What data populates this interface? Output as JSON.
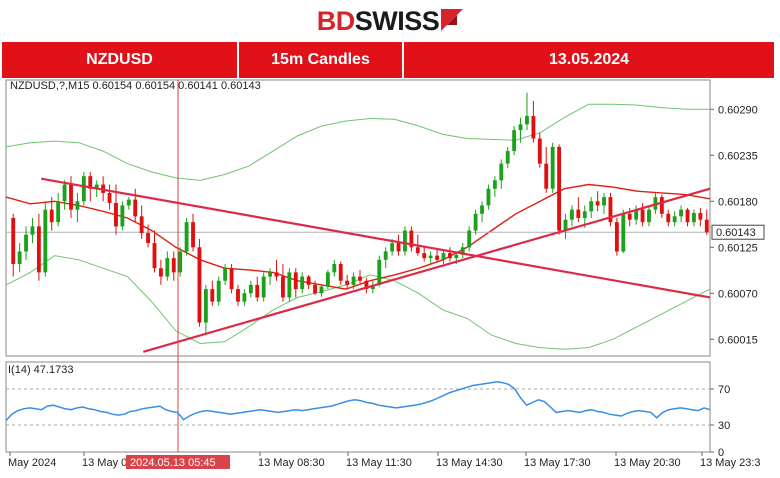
{
  "logo": {
    "brand_red_part": "BD",
    "brand_dark_part": "SWISS",
    "mark": "arrow-icon"
  },
  "banner": {
    "symbol": "NZDUSD",
    "timeframe": "15m Candles",
    "date": "13.05.2024"
  },
  "colors": {
    "brand_red": "#e1111a",
    "bull_candle": "#1ba11b",
    "bear_candle": "#e01010",
    "bollinger": "#6fc46f",
    "moving_average": "#e01f10",
    "trendline": "#dc2a46",
    "rsi": "#3a8ee6",
    "crosshair": "#d6403a"
  },
  "chart_data": [
    {
      "type": "candlestick",
      "info_label": "NZDUSD,?,M15  0.60154 0.60154 0.60141 0.60143",
      "current_price_label": "0.60143",
      "current_price": 0.60143,
      "ylim": [
        0.59995,
        0.60325
      ],
      "y_ticks": [
        "0.60290",
        "0.60235",
        "0.60180",
        "0.60125",
        "0.60070",
        "0.60015"
      ],
      "x_tick_labels": [
        "May 2024",
        "13 May 0",
        "13 May 08:30",
        "13 May 11:30",
        "13 May 14:30",
        "13 May 17:30",
        "13 May 20:30",
        "13 May 23:3"
      ],
      "crosshair_label": "2024.05.13 05:45",
      "candles_ohlc": [
        [
          0.6016,
          0.60165,
          0.6009,
          0.60105
        ],
        [
          0.60105,
          0.6013,
          0.60095,
          0.6012
        ],
        [
          0.6012,
          0.6015,
          0.6011,
          0.6014
        ],
        [
          0.6014,
          0.6016,
          0.6013,
          0.6015
        ],
        [
          0.6015,
          0.60165,
          0.60085,
          0.60095
        ],
        [
          0.60095,
          0.6018,
          0.6009,
          0.6017
        ],
        [
          0.6017,
          0.60185,
          0.60145,
          0.60155
        ],
        [
          0.60155,
          0.6019,
          0.6015,
          0.6018
        ],
        [
          0.6018,
          0.60205,
          0.6017,
          0.602
        ],
        [
          0.602,
          0.6021,
          0.6016,
          0.6017
        ],
        [
          0.6017,
          0.6019,
          0.60155,
          0.6018
        ],
        [
          0.6018,
          0.60215,
          0.60175,
          0.6021
        ],
        [
          0.6021,
          0.60215,
          0.6018,
          0.60195
        ],
        [
          0.60195,
          0.60205,
          0.60185,
          0.602
        ],
        [
          0.602,
          0.6021,
          0.6018,
          0.6019
        ],
        [
          0.6019,
          0.602,
          0.6017,
          0.60178
        ],
        [
          0.60178,
          0.602,
          0.6014,
          0.6015
        ],
        [
          0.6015,
          0.6018,
          0.60145,
          0.60175
        ],
        [
          0.60175,
          0.60185,
          0.6017,
          0.60182
        ],
        [
          0.60182,
          0.60195,
          0.60155,
          0.60162
        ],
        [
          0.60162,
          0.60175,
          0.60135,
          0.60142
        ],
        [
          0.60142,
          0.60152,
          0.60125,
          0.6013
        ],
        [
          0.6013,
          0.60145,
          0.60095,
          0.601
        ],
        [
          0.601,
          0.6011,
          0.6008,
          0.6009
        ],
        [
          0.6009,
          0.6012,
          0.60085,
          0.60112
        ],
        [
          0.60112,
          0.6012,
          0.60085,
          0.60095
        ],
        [
          0.60095,
          0.60125,
          0.6009,
          0.6012
        ],
        [
          0.6012,
          0.6016,
          0.60115,
          0.60155
        ],
        [
          0.60155,
          0.60165,
          0.6012,
          0.60125
        ],
        [
          0.60125,
          0.60135,
          0.6003,
          0.60035
        ],
        [
          0.60035,
          0.6008,
          0.6002,
          0.60075
        ],
        [
          0.60075,
          0.60085,
          0.60055,
          0.6006
        ],
        [
          0.6006,
          0.6009,
          0.60055,
          0.60085
        ],
        [
          0.60085,
          0.60105,
          0.6008,
          0.601
        ],
        [
          0.601,
          0.60105,
          0.6007,
          0.60075
        ],
        [
          0.60075,
          0.6008,
          0.60055,
          0.6006
        ],
        [
          0.6006,
          0.60075,
          0.60055,
          0.6007
        ],
        [
          0.6007,
          0.60085,
          0.60065,
          0.6008
        ],
        [
          0.6008,
          0.6009,
          0.6006,
          0.60065
        ],
        [
          0.60065,
          0.60095,
          0.6006,
          0.6009
        ],
        [
          0.6009,
          0.601,
          0.6008,
          0.60095
        ],
        [
          0.60095,
          0.6011,
          0.60085,
          0.6009
        ],
        [
          0.6009,
          0.60105,
          0.6006,
          0.60065
        ],
        [
          0.60065,
          0.601,
          0.6006,
          0.60095
        ],
        [
          0.60095,
          0.601,
          0.60065,
          0.60075
        ],
        [
          0.60075,
          0.60095,
          0.6007,
          0.6009
        ],
        [
          0.6009,
          0.60092,
          0.60075,
          0.6008
        ],
        [
          0.6008,
          0.60085,
          0.60068,
          0.6007
        ],
        [
          0.6007,
          0.6008,
          0.60066,
          0.60078
        ],
        [
          0.60078,
          0.60098,
          0.60075,
          0.60095
        ],
        [
          0.60095,
          0.6011,
          0.6009,
          0.60105
        ],
        [
          0.60105,
          0.60108,
          0.6008,
          0.60085
        ],
        [
          0.60085,
          0.60092,
          0.60075,
          0.6008
        ],
        [
          0.6008,
          0.60095,
          0.60075,
          0.6009
        ],
        [
          0.6009,
          0.60098,
          0.60082,
          0.60085
        ],
        [
          0.60085,
          0.60088,
          0.6007,
          0.60075
        ],
        [
          0.60075,
          0.60085,
          0.6007,
          0.6008
        ],
        [
          0.6008,
          0.60115,
          0.60078,
          0.6011
        ],
        [
          0.6011,
          0.60125,
          0.601,
          0.6012
        ],
        [
          0.6012,
          0.60135,
          0.60115,
          0.6013
        ],
        [
          0.6013,
          0.6014,
          0.60115,
          0.6012
        ],
        [
          0.6012,
          0.6015,
          0.60115,
          0.60145
        ],
        [
          0.60145,
          0.6015,
          0.6012,
          0.60125
        ],
        [
          0.60125,
          0.6014,
          0.60115,
          0.60118
        ],
        [
          0.60118,
          0.60125,
          0.60108,
          0.60112
        ],
        [
          0.60112,
          0.6012,
          0.60105,
          0.60115
        ],
        [
          0.60115,
          0.60122,
          0.60108,
          0.6011
        ],
        [
          0.6011,
          0.60122,
          0.60105,
          0.60118
        ],
        [
          0.60118,
          0.60125,
          0.60108,
          0.60112
        ],
        [
          0.60112,
          0.6012,
          0.60105,
          0.60116
        ],
        [
          0.60116,
          0.6013,
          0.60112,
          0.60125
        ],
        [
          0.60125,
          0.6015,
          0.6012,
          0.60145
        ],
        [
          0.60145,
          0.6017,
          0.6014,
          0.60165
        ],
        [
          0.60165,
          0.6018,
          0.60155,
          0.60175
        ],
        [
          0.60175,
          0.602,
          0.6017,
          0.60195
        ],
        [
          0.60195,
          0.6021,
          0.60185,
          0.60205
        ],
        [
          0.60205,
          0.6023,
          0.60195,
          0.60225
        ],
        [
          0.60225,
          0.60245,
          0.6022,
          0.6024
        ],
        [
          0.6024,
          0.6027,
          0.60235,
          0.60265
        ],
        [
          0.60265,
          0.6028,
          0.6025,
          0.60272
        ],
        [
          0.60272,
          0.6031,
          0.60265,
          0.60282
        ],
        [
          0.60282,
          0.603,
          0.6025,
          0.60255
        ],
        [
          0.60255,
          0.60262,
          0.6022,
          0.60225
        ],
        [
          0.60225,
          0.60245,
          0.6019,
          0.60195
        ],
        [
          0.60195,
          0.6025,
          0.6019,
          0.60245
        ],
        [
          0.60245,
          0.60248,
          0.6014,
          0.60145
        ],
        [
          0.60145,
          0.60165,
          0.60135,
          0.60158
        ],
        [
          0.60158,
          0.60175,
          0.6015,
          0.6017
        ],
        [
          0.6017,
          0.60185,
          0.60155,
          0.6016
        ],
        [
          0.6016,
          0.60175,
          0.60148,
          0.60168
        ],
        [
          0.60168,
          0.60185,
          0.6016,
          0.6018
        ],
        [
          0.6018,
          0.60192,
          0.60168,
          0.60175
        ],
        [
          0.60175,
          0.6019,
          0.60165,
          0.60185
        ],
        [
          0.60185,
          0.6019,
          0.6015,
          0.60155
        ],
        [
          0.60155,
          0.6016,
          0.60115,
          0.6012
        ],
        [
          0.6012,
          0.6017,
          0.60118,
          0.60165
        ],
        [
          0.60165,
          0.60172,
          0.6015,
          0.60158
        ],
        [
          0.60158,
          0.60175,
          0.60152,
          0.6017
        ],
        [
          0.6017,
          0.60178,
          0.6015,
          0.60155
        ],
        [
          0.60155,
          0.60175,
          0.6015,
          0.6017
        ],
        [
          0.6017,
          0.6019,
          0.60165,
          0.60185
        ],
        [
          0.60185,
          0.60188,
          0.6016,
          0.60165
        ],
        [
          0.60165,
          0.6017,
          0.6015,
          0.60155
        ],
        [
          0.60155,
          0.60168,
          0.6015,
          0.60162
        ],
        [
          0.60162,
          0.60175,
          0.60155,
          0.6017
        ],
        [
          0.6017,
          0.60172,
          0.6015,
          0.60155
        ],
        [
          0.60155,
          0.6017,
          0.6015,
          0.60166
        ],
        [
          0.60166,
          0.60172,
          0.6015,
          0.60158
        ],
        [
          0.60158,
          0.6017,
          0.6014,
          0.60143
        ]
      ],
      "bollinger_upper": [
        0.60245,
        0.6025,
        0.60252,
        0.6025,
        0.6024,
        0.60225,
        0.60215,
        0.60208,
        0.60205,
        0.60212,
        0.60222,
        0.6024,
        0.60258,
        0.6027,
        0.60276,
        0.60279,
        0.60278,
        0.6027,
        0.6026,
        0.60255,
        0.60254,
        0.60253,
        0.60262,
        0.6028,
        0.60296,
        0.60296,
        0.60295,
        0.60292,
        0.6029,
        0.6029
      ],
      "bollinger_lower": [
        0.6008,
        0.60095,
        0.60115,
        0.6011,
        0.601,
        0.6009,
        0.6006,
        0.60025,
        0.6001,
        0.60012,
        0.6003,
        0.6005,
        0.60065,
        0.60072,
        0.6008,
        0.60092,
        0.60085,
        0.6007,
        0.6005,
        0.6004,
        0.6002,
        0.6001,
        0.60005,
        0.60003,
        0.60005,
        0.60015,
        0.6003,
        0.60045,
        0.6006,
        0.60075
      ],
      "moving_average": [
        0.60185,
        0.60177,
        0.6018,
        0.60175,
        0.60168,
        0.6016,
        0.60145,
        0.60125,
        0.6011,
        0.601,
        0.60098,
        0.60095,
        0.60085,
        0.6008,
        0.60075,
        0.60085,
        0.60092,
        0.601,
        0.6011,
        0.60125,
        0.60145,
        0.60165,
        0.6018,
        0.60195,
        0.602,
        0.60197,
        0.60192,
        0.6019,
        0.60188,
        0.60183
      ],
      "trendlines": [
        {
          "from": [
            0.05,
            0.60207
          ],
          "to": [
            1.0,
            0.60065
          ]
        },
        {
          "from": [
            0.195,
            0.6
          ],
          "to": [
            1.0,
            0.60195
          ]
        }
      ]
    },
    {
      "type": "line",
      "indicator_label": "I(14) 47.1733",
      "current_value": 47.1733,
      "ylim": [
        0,
        100
      ],
      "y_ticks": [
        "70",
        "30",
        "0"
      ],
      "levels": [
        70,
        30
      ],
      "values": [
        35,
        42,
        46,
        48,
        49,
        48,
        47,
        51,
        52,
        50,
        48,
        47,
        49,
        50,
        48,
        47,
        45,
        44,
        42,
        41,
        42,
        45,
        46,
        48,
        49,
        50,
        51,
        47,
        45,
        44,
        36,
        40,
        43,
        45,
        46,
        45,
        44,
        43,
        42,
        43,
        44,
        45,
        46,
        47,
        46,
        45,
        44,
        45,
        46,
        47,
        46,
        47,
        48,
        49,
        50,
        51,
        53,
        55,
        57,
        58,
        57,
        55,
        54,
        52,
        51,
        50,
        49,
        50,
        51,
        52,
        53,
        55,
        57,
        60,
        63,
        66,
        68,
        70,
        72,
        74,
        75,
        76,
        77,
        78,
        77,
        75,
        70,
        60,
        52,
        55,
        58,
        56,
        50,
        44,
        45,
        46,
        45,
        44,
        46,
        47,
        45,
        44,
        42,
        41,
        40,
        43,
        45,
        46,
        45,
        44,
        38,
        44,
        47,
        48,
        49,
        48,
        47,
        46,
        49,
        47
      ]
    }
  ]
}
